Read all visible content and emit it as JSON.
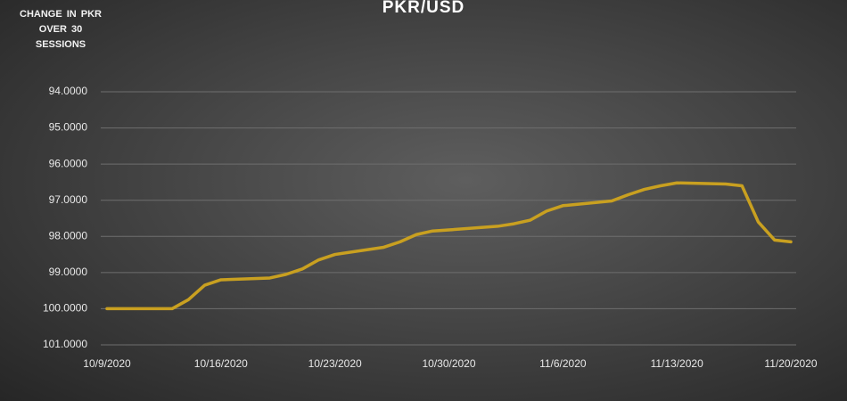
{
  "chart_data": {
    "type": "line",
    "title": "PKR/USD",
    "y_label": "CHANGE IN PKR OVER 30 SESSIONS",
    "x": [
      "10/9/2020",
      "10/12/2020",
      "10/13/2020",
      "10/14/2020",
      "10/15/2020",
      "10/16/2020",
      "10/19/2020",
      "10/20/2020",
      "10/21/2020",
      "10/22/2020",
      "10/23/2020",
      "10/26/2020",
      "10/27/2020",
      "10/28/2020",
      "10/29/2020",
      "10/30/2020",
      "11/2/2020",
      "11/3/2020",
      "11/4/2020",
      "11/5/2020",
      "11/6/2020",
      "11/9/2020",
      "11/10/2020",
      "11/11/2020",
      "11/12/2020",
      "11/13/2020",
      "11/16/2020",
      "11/17/2020",
      "11/18/2020",
      "11/19/2020",
      "11/20/2020"
    ],
    "series": [
      {
        "name": "PKR/USD",
        "color": "#c9a020",
        "values": [
          100.0,
          100.0,
          100.0,
          99.75,
          99.35,
          99.2,
          99.15,
          99.05,
          98.9,
          98.65,
          98.5,
          98.3,
          98.15,
          97.95,
          97.85,
          97.82,
          97.72,
          97.65,
          97.55,
          97.3,
          97.15,
          97.02,
          96.85,
          96.7,
          96.6,
          96.52,
          96.55,
          96.6,
          97.6,
          98.1,
          98.15
        ]
      }
    ],
    "xlim": [
      "10/9/2020",
      "11/20/2020"
    ],
    "xticks": [
      "10/9/2020",
      "10/16/2020",
      "10/23/2020",
      "10/30/2020",
      "11/6/2020",
      "11/13/2020",
      "11/20/2020"
    ],
    "ylim": [
      101,
      94
    ],
    "yticks": [
      {
        "value": 94,
        "label": "94.0000"
      },
      {
        "value": 95,
        "label": "95.0000"
      },
      {
        "value": 96,
        "label": "96.0000"
      },
      {
        "value": 97,
        "label": "97.0000"
      },
      {
        "value": 98,
        "label": "98.0000"
      },
      {
        "value": 99,
        "label": "99.0000"
      },
      {
        "value": 100,
        "label": "100.0000"
      },
      {
        "value": 101,
        "label": "101.0000"
      }
    ],
    "grid": true
  }
}
